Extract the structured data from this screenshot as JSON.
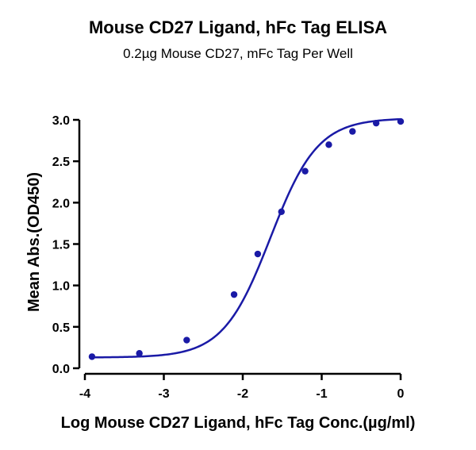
{
  "chart_data": {
    "type": "line",
    "title": "Mouse CD27 Ligand, hFc Tag ELISA",
    "subtitle": "0.2µg Mouse CD27, mFc Tag Per Well",
    "xlabel": "Log Mouse CD27 Ligand, hFc Tag Conc.(µg/ml)",
    "ylabel": "Mean Abs.(OD450)",
    "xlim": [
      -4,
      0
    ],
    "ylim": [
      0,
      3.0
    ],
    "x_ticks": [
      "-4",
      "-3",
      "-2",
      "-1",
      "0"
    ],
    "y_ticks": [
      "0.0",
      "0.5",
      "1.0",
      "1.5",
      "2.0",
      "2.5",
      "3.0"
    ],
    "series": [
      {
        "x": [
          -3.91,
          -3.31,
          -2.71,
          -2.11,
          -1.81,
          -1.51,
          -1.21,
          -0.91,
          -0.61,
          -0.31,
          0.0
        ],
        "y": [
          0.14,
          0.18,
          0.34,
          0.89,
          1.38,
          1.89,
          2.38,
          2.7,
          2.86,
          2.96,
          2.98
        ]
      }
    ],
    "curve": {
      "bottom": 0.13,
      "top": 3.02,
      "logEC50": -1.65,
      "hill": 1.45
    },
    "color": "#1a1aa6",
    "grid": false,
    "legend": "none"
  }
}
